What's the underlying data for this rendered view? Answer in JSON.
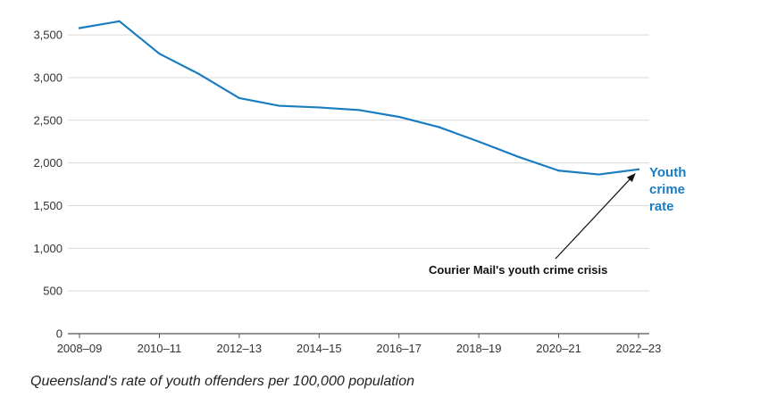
{
  "chart_data": {
    "type": "line",
    "x": [
      "2008–09",
      "2009–10",
      "2010–11",
      "2011–12",
      "2012–13",
      "2013–14",
      "2014–15",
      "2015–16",
      "2016–17",
      "2017–18",
      "2018–19",
      "2019–20",
      "2020–21",
      "2021–22",
      "2022–23"
    ],
    "xtick_labels": [
      "2008–09",
      "2010–11",
      "2012–13",
      "2014–15",
      "2016–17",
      "2018–19",
      "2020–21",
      "2022–23"
    ],
    "series": [
      {
        "name": "Youth crime rate",
        "label_lines": [
          "Youth",
          "crime",
          "rate"
        ],
        "values": [
          3580,
          3660,
          3280,
          3040,
          2760,
          2670,
          2650,
          2620,
          2540,
          2420,
          2250,
          2070,
          1910,
          1865,
          1925
        ]
      }
    ],
    "yticks": [
      0,
      500,
      1000,
      1500,
      2000,
      2500,
      3000,
      3500
    ],
    "ytick_labels": [
      "0",
      "500",
      "1,000",
      "1,500",
      "2,000",
      "2,500",
      "3,000",
      "3,500"
    ],
    "ylim": [
      0,
      3700
    ],
    "grid": true,
    "annotation": {
      "text": "Courier Mail's youth crime crisis",
      "points_to": "2022–23"
    },
    "caption": "Queensland's rate of youth offenders per 100,000 population",
    "line_color": "#1a7cc1",
    "grid_color": "#d9d9d9",
    "axis_color": "#555555"
  }
}
